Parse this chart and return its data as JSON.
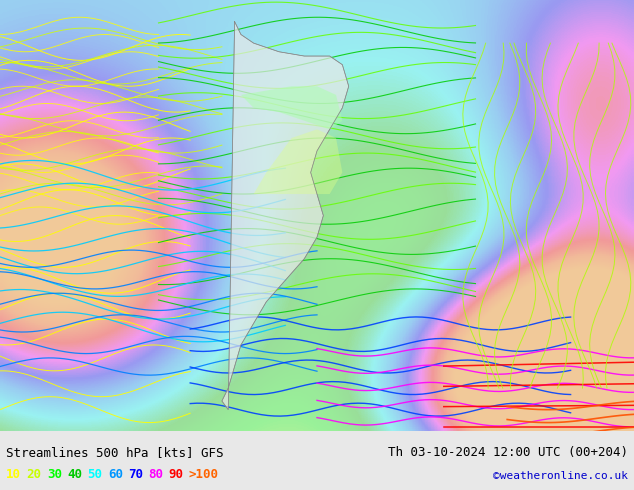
{
  "title_left": "Streamlines 500 hPa [kts] GFS",
  "title_right": "Th 03-10-2024 12:00 UTC (00+204)",
  "credit": "©weatheronline.co.uk",
  "legend_values": [
    "10",
    "20",
    "30",
    "40",
    "50",
    "60",
    "70",
    "80",
    "90",
    ">100"
  ],
  "legend_colors": [
    "#ffff00",
    "#c8ff00",
    "#00ff00",
    "#00c800",
    "#00ffff",
    "#0096ff",
    "#0000ff",
    "#ff00ff",
    "#ff0000",
    "#ff6400"
  ],
  "bg_color": "#e8e8e8",
  "map_bg": "#f0f0f0",
  "land_color": "#f5f5f5",
  "water_color": "#c8d8e8",
  "title_fontsize": 9,
  "legend_fontsize": 9,
  "credit_color": "#0000cc",
  "title_color": "#000000",
  "bottom_bar_color": "#ffffff",
  "fig_width": 6.34,
  "fig_height": 4.9,
  "dpi": 100
}
